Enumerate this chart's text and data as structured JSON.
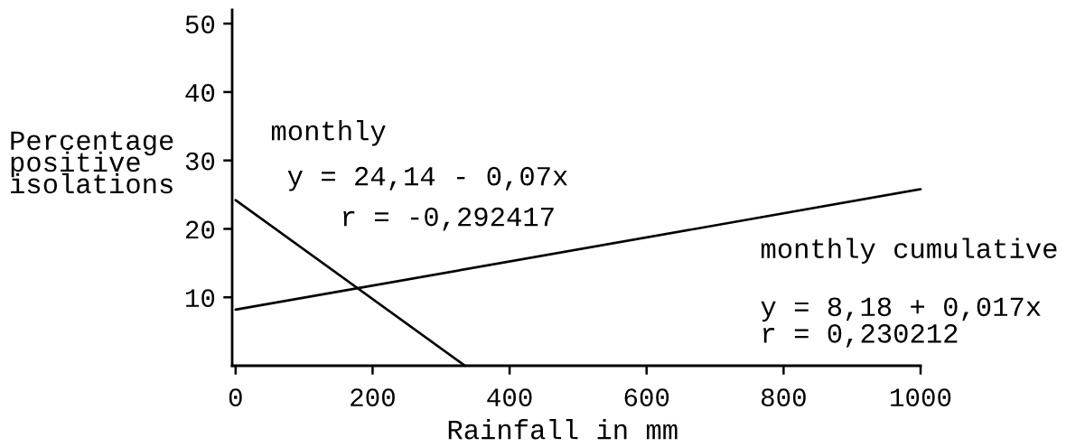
{
  "chart_data": {
    "type": "line",
    "xlabel": "Rainfall in mm",
    "ylabel": "Percentage\npositive\nisolations",
    "series": [
      {
        "name": "monthly",
        "color": "#000000",
        "x": [
          0,
          335
        ],
        "values": [
          24.2,
          0
        ]
      },
      {
        "name": "monthly cumulative",
        "color": "#000000",
        "x": [
          0,
          1000
        ],
        "values": [
          8.2,
          25.8
        ]
      }
    ],
    "annotations": [
      "y = 24,14 - 0,07x",
      "r = -0,292417",
      "y = 8,18 + 0,017x",
      "r = 0,230212"
    ],
    "xlim": [
      -5,
      1000
    ],
    "ylim": [
      0,
      52
    ],
    "xticks": [
      0,
      200,
      400,
      600,
      800,
      1000
    ],
    "yticks": [
      10,
      20,
      30,
      40,
      50
    ],
    "legend": false,
    "marker": "none",
    "line_style": "solid"
  }
}
